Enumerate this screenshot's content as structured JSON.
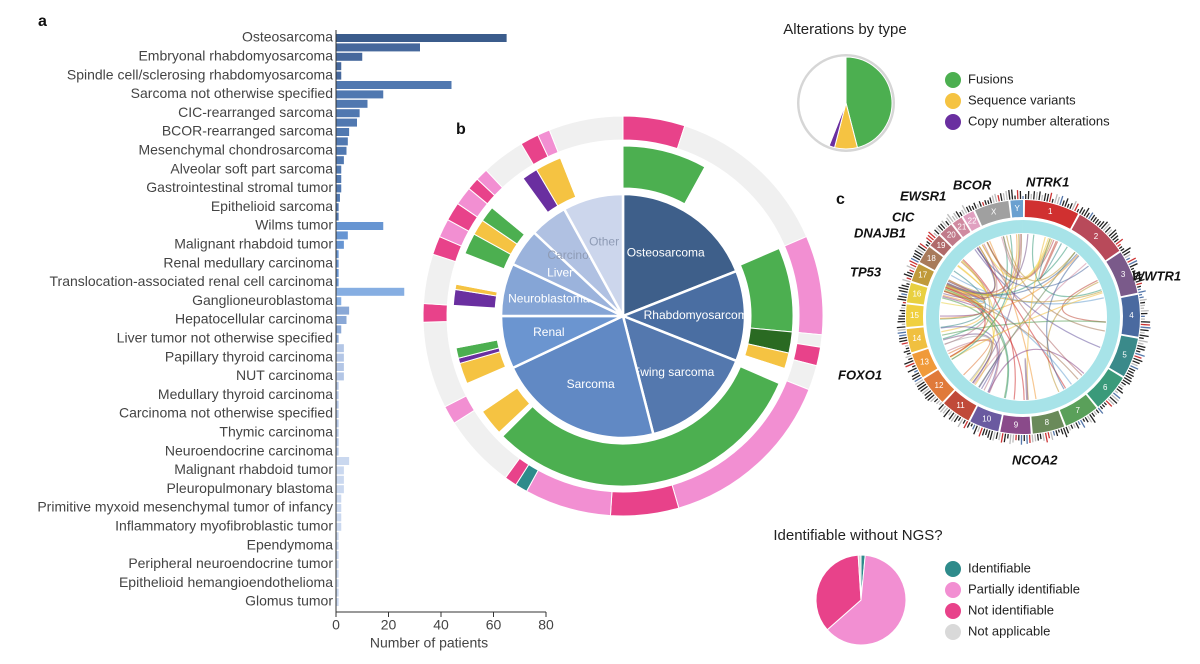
{
  "panel_labels": [
    "a",
    "b",
    "c"
  ],
  "chart_data": [
    {
      "type": "bar",
      "categories": [
        "Osteosarcoma",
        null,
        "Embryonal rhabdomyosarcoma",
        null,
        "Spindle cell/sclerosing rhabdomyosarcoma",
        null,
        "Sarcoma not otherwise specified",
        null,
        "CIC-rearranged sarcoma",
        null,
        "BCOR-rearranged sarcoma",
        null,
        "Mesenchymal chondrosarcoma",
        null,
        "Alveolar soft part sarcoma",
        null,
        "Gastrointestinal stromal tumor",
        null,
        "Epithelioid sarcoma",
        null,
        "Wilms tumor",
        null,
        "Malignant rhabdoid tumor",
        null,
        "Renal medullary carcinoma",
        null,
        "Translocation-associated renal cell carcinoma",
        null,
        "Ganglioneuroblastoma",
        null,
        "Hepatocellular carcinoma",
        null,
        "Liver tumor not otherwise specified",
        null,
        "Papillary thyroid carcinoma",
        null,
        "NUT carcinoma",
        null,
        "Medullary thyroid carcinoma",
        null,
        "Carcinoma not otherwise specified",
        null,
        "Thymic carcinoma",
        null,
        "Neuroendocrine carcinoma",
        null,
        "Malignant rhabdoid tumor",
        null,
        "Pleuropulmonary blastoma",
        null,
        "Primitive myxoid mesenchymal tumor of infancy",
        null,
        "Inflammatory myofibroblastic tumor",
        null,
        "Ependymoma",
        null,
        "Peripheral neuroendocrine tumor",
        null,
        "Epithelioid hemangioendothelioma",
        null,
        "Glomus tumor"
      ],
      "values": [
        65,
        32,
        10,
        2,
        2,
        44,
        18,
        12,
        9,
        8,
        5,
        4.5,
        4,
        3,
        2,
        2,
        2,
        1.5,
        1,
        1,
        18,
        4.5,
        3,
        1,
        1,
        1,
        1,
        26,
        2,
        5,
        4,
        2,
        1,
        3,
        3,
        3,
        3,
        1,
        1,
        1,
        1,
        1,
        1,
        1,
        1,
        5,
        3,
        3,
        3,
        2,
        2,
        2,
        2,
        1,
        1,
        1,
        1,
        1,
        1,
        1,
        1
      ],
      "colors": [
        "#3b5c8c",
        "#46689c",
        "#46689c",
        "#46689c",
        "#46689c",
        "#5078b0",
        "#5078b0",
        "#5078b0",
        "#5078b0",
        "#5078b0",
        "#5078b0",
        "#5078b0",
        "#5078b0",
        "#5078b0",
        "#5078b0",
        "#5078b0",
        "#5078b0",
        "#5078b0",
        "#5078b0",
        "#5078b0",
        "#6795d2",
        "#6795d2",
        "#6795d2",
        "#6795d2",
        "#6795d2",
        "#6795d2",
        "#6795d2",
        "#86aee2",
        "#86aee2",
        "#8aa8d6",
        "#8aa8d6",
        "#8aa8d6",
        "#8aa8d6",
        "#b3c6e6",
        "#b3c6e6",
        "#b3c6e6",
        "#b3c6e6",
        "#b3c6e6",
        "#b3c6e6",
        "#b3c6e6",
        "#b3c6e6",
        "#b3c6e6",
        "#b3c6e6",
        "#b3c6e6",
        "#b3c6e6",
        "#cad8ef",
        "#cad8ef",
        "#cad8ef",
        "#cad8ef",
        "#cad8ef",
        "#cad8ef",
        "#cad8ef",
        "#cad8ef",
        "#cad8ef",
        "#cad8ef",
        "#cad8ef",
        "#cad8ef",
        "#cad8ef",
        "#cad8ef",
        "#cad8ef",
        "#cad8ef"
      ],
      "xlim": [
        0,
        80
      ],
      "xticks": [
        0,
        20,
        40,
        60,
        80
      ],
      "x_label": "Number of patients"
    },
    {
      "type": "sunburst",
      "categories": [
        "Osteosarcoma",
        "Rhabdomyosarcoma",
        "Ewing sarcoma",
        "Sarcoma",
        "Renal",
        "Neuroblastoma",
        "Liver",
        "Carcinoma",
        "Other"
      ],
      "values": [
        19,
        12,
        15,
        22,
        7,
        7,
        5,
        5,
        8
      ],
      "colors": [
        "#3e5f8a",
        "#4a6ea2",
        "#5478ae",
        "#6189c4",
        "#6b95d0",
        "#85a5d6",
        "#9bb3dc",
        "#b0c1e2",
        "#ccd6ec"
      ],
      "rings": [
        {
          "values": [
            8,
            10.5,
            8,
            2,
            1.5,
            1.5,
            31,
            0.5,
            2.5,
            3,
            2,
            0.5,
            1,
            4,
            1.5,
            0.5,
            3,
            2,
            1.5,
            1.5,
            4,
            1.5,
            2.5,
            6
          ],
          "colors": [
            "#4caf50",
            "#ffffff",
            "#4caf50",
            "#2a6a22",
            "#f5c342",
            "#ffffff",
            "#4caf50",
            "#ffffff",
            "#f5c342",
            "#ffffff",
            "#f5c342",
            "#6a2fa0",
            "#4caf50",
            "#ffffff",
            "#6a2fa0",
            "#f5c342",
            "#ffffff",
            "#4caf50",
            "#f5c342",
            "#4caf50",
            "#ffffff",
            "#6a2fa0",
            "#f5c342",
            "#ffffff"
          ]
        },
        {
          "values": [
            5,
            13.5,
            8,
            1,
            1.5,
            2,
            14.5,
            5.5,
            7,
            1,
            1,
            6,
            1.5,
            7,
            1.5,
            4,
            1.5,
            1.5,
            1.5,
            1.5,
            1,
            1,
            3.5,
            1.5,
            1,
            6
          ],
          "colors": [
            "#e8428a",
            "#f0f0f0",
            "#f28fd2",
            "#f0f0f0",
            "#e8428a",
            "#f0f0f0",
            "#f28fd2",
            "#e8428a",
            "#f28fd2",
            "#2e8b8b",
            "#e8428a",
            "#f0f0f0",
            "#f28fd2",
            "#f0f0f0",
            "#e8428a",
            "#f0f0f0",
            "#e8428a",
            "#f28fd2",
            "#e8428a",
            "#f28fd2",
            "#e8428a",
            "#f28fd2",
            "#f0f0f0",
            "#e8428a",
            "#f28fd2",
            "#f0f0f0"
          ]
        }
      ]
    },
    {
      "type": "pie",
      "title": "Alterations by type",
      "categories": [
        "Fusions",
        "Sequence variants",
        "Copy  number alterations",
        null
      ],
      "values": [
        46,
        8,
        2,
        44
      ],
      "colors": [
        "#4caf50",
        "#f5c342",
        "#6a2fa0",
        "#ffffff"
      ]
    },
    {
      "type": "pie",
      "title": "Identifiable without NGS?",
      "categories": [
        "Identifiable",
        "Partially identifiable",
        "Not identifiable",
        "Not applicable"
      ],
      "values": [
        1.5,
        62,
        35.5,
        1
      ],
      "colors": [
        "#2e8b8b",
        "#f28fd2",
        "#e8428a",
        "#d9d9d9"
      ]
    },
    {
      "type": "circos",
      "chromosomes": [
        "1",
        "2",
        "3",
        "4",
        "5",
        "6",
        "7",
        "8",
        "9",
        "10",
        "11",
        "12",
        "13",
        "14",
        "15",
        "16",
        "17",
        "18",
        "19",
        "20",
        "21",
        "22",
        "X",
        "Y"
      ],
      "lengths": [
        249,
        242,
        198,
        190,
        181,
        171,
        159,
        145,
        138,
        134,
        135,
        133,
        114,
        107,
        102,
        90,
        83,
        80,
        59,
        64,
        47,
        51,
        156,
        57
      ],
      "colors": [
        "#d03030",
        "#b84a5a",
        "#7a5a8a",
        "#4a6aa0",
        "#3a8a8a",
        "#3a9a7a",
        "#5aa05a",
        "#6a8a5a",
        "#8a4a8a",
        "#6a5aa0",
        "#c04a3a",
        "#e07a3a",
        "#f09a3a",
        "#f0c040",
        "#f0d040",
        "#e8d040",
        "#c09a3a",
        "#a87a5a",
        "#b06a6a",
        "#c07a8a",
        "#d08aa0",
        "#e0a0c0",
        "#a0a0a0",
        "#6aa0d0"
      ],
      "genes": [
        "BCOR",
        "NTRK1",
        "WWTR1",
        "NCOA2",
        "FOXO1",
        "TP53",
        "DNAJB1",
        "CIC",
        "EWSR1"
      ]
    }
  ]
}
